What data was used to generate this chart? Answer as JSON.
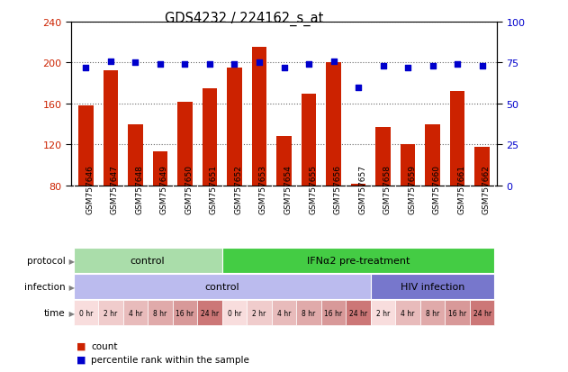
{
  "title": "GDS4232 / 224162_s_at",
  "samples": [
    "GSM757646",
    "GSM757647",
    "GSM757648",
    "GSM757649",
    "GSM757650",
    "GSM757651",
    "GSM757652",
    "GSM757653",
    "GSM757654",
    "GSM757655",
    "GSM757656",
    "GSM757657",
    "GSM757658",
    "GSM757659",
    "GSM757660",
    "GSM757661",
    "GSM757662"
  ],
  "bar_values": [
    158,
    192,
    140,
    113,
    162,
    175,
    195,
    215,
    128,
    170,
    200,
    82,
    137,
    120,
    140,
    172,
    118
  ],
  "dot_values": [
    72,
    76,
    75,
    74,
    74,
    74,
    74,
    75,
    72,
    74,
    76,
    60,
    73,
    72,
    73,
    74,
    73
  ],
  "ylim_left": [
    80,
    240
  ],
  "ylim_right": [
    0,
    100
  ],
  "yticks_left": [
    80,
    120,
    160,
    200,
    240
  ],
  "yticks_right": [
    0,
    25,
    50,
    75,
    100
  ],
  "bar_color": "#cc2200",
  "dot_color": "#0000cc",
  "plot_bg": "#ffffff",
  "xtick_bg": "#cccccc",
  "protocol_labels": [
    {
      "text": "control",
      "start": 0,
      "end": 6,
      "color": "#aaddaa"
    },
    {
      "text": "IFNα2 pre-treatment",
      "start": 6,
      "end": 17,
      "color": "#44cc44"
    }
  ],
  "infection_labels": [
    {
      "text": "control",
      "start": 0,
      "end": 12,
      "color": "#bbbbee"
    },
    {
      "text": "HIV infection",
      "start": 12,
      "end": 17,
      "color": "#7777cc"
    }
  ],
  "time_labels": [
    "0 hr",
    "2 hr",
    "4 hr",
    "8 hr",
    "16 hr",
    "24 hr",
    "0 hr",
    "2 hr",
    "4 hr",
    "8 hr",
    "16 hr",
    "24 hr",
    "2 hr",
    "4 hr",
    "8 hr",
    "16 hr",
    "24 hr"
  ],
  "time_colors": [
    "#f8dddd",
    "#f0cccc",
    "#e8bbbb",
    "#e0aaaa",
    "#d89999",
    "#cc7777",
    "#f8dddd",
    "#f0cccc",
    "#e8bbbb",
    "#e0aaaa",
    "#d89999",
    "#cc7777",
    "#f8dddd",
    "#e8bbbb",
    "#e0aaaa",
    "#d89999",
    "#cc7777"
  ],
  "row_labels": [
    "protocol",
    "infection",
    "time"
  ],
  "legend_items": [
    {
      "label": "count",
      "color": "#cc2200"
    },
    {
      "label": "percentile rank within the sample",
      "color": "#0000cc"
    }
  ]
}
